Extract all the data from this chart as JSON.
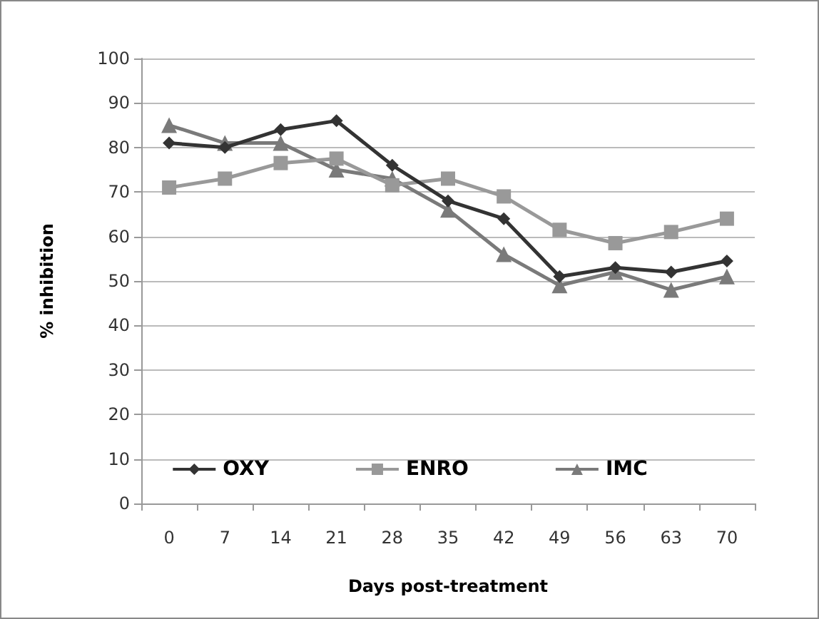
{
  "chart_data": {
    "type": "line",
    "xlabel": "Days post-treatment",
    "ylabel": "% inhibition",
    "categories": [
      "0",
      "7",
      "14",
      "21",
      "28",
      "35",
      "42",
      "49",
      "56",
      "63",
      "70"
    ],
    "series": [
      {
        "name": "OXY",
        "color": "#333333",
        "marker": "diamond",
        "values": [
          81,
          80,
          84,
          86,
          76,
          68,
          64,
          51,
          53,
          52,
          54.5
        ]
      },
      {
        "name": "ENRO",
        "color": "#999999",
        "marker": "square",
        "values": [
          71,
          73,
          76.5,
          77.5,
          71.5,
          73,
          69,
          61.5,
          58.5,
          61,
          64
        ]
      },
      {
        "name": "IMC",
        "color": "#7a7a7a",
        "marker": "triangle",
        "values": [
          85,
          81,
          81,
          75,
          73,
          66,
          56,
          49,
          52,
          48,
          51
        ]
      }
    ],
    "ylim": [
      0,
      100
    ],
    "yticks": [
      0,
      10,
      20,
      30,
      40,
      50,
      60,
      70,
      80,
      90,
      100
    ],
    "grid": "y",
    "legend": "bottom"
  }
}
